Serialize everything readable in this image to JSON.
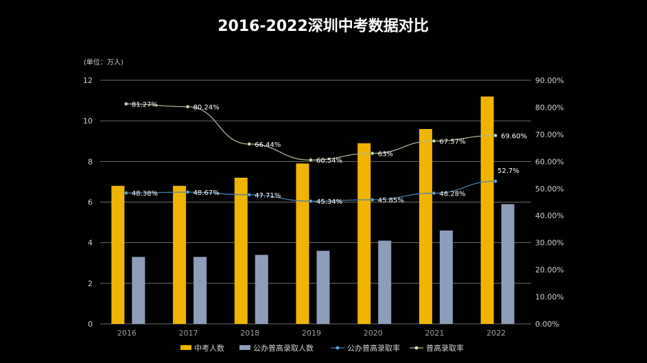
{
  "chart_data": {
    "type": "bar",
    "title": "2016-2022深圳中考数据对比",
    "unit_label": "(单位：万人)",
    "categories": [
      "2016",
      "2017",
      "2018",
      "2019",
      "2020",
      "2021",
      "2022"
    ],
    "y_left": {
      "min": 0,
      "max": 12,
      "ticks": [
        "0",
        "2",
        "4",
        "6",
        "8",
        "10",
        "12"
      ]
    },
    "y_right": {
      "min": 0,
      "max": 90,
      "ticks": [
        "0.00%",
        "10.00%",
        "20.00%",
        "30.00%",
        "40.00%",
        "50.00%",
        "60.00%",
        "70.00%",
        "80.00%",
        "90.00%"
      ]
    },
    "grid": true,
    "legend_position": "bottom",
    "bar_series": [
      {
        "name": "中考人数",
        "color": "#F0B400",
        "values": [
          6.8,
          6.8,
          7.2,
          7.9,
          8.9,
          9.6,
          11.2
        ]
      },
      {
        "name": "公办普高录取人数",
        "color": "#8E9DB9",
        "values": [
          3.3,
          3.3,
          3.4,
          3.6,
          4.1,
          4.6,
          5.9
        ]
      }
    ],
    "line_series": [
      {
        "name": "公办普高录取率",
        "color": "#4A7FB0",
        "values": [
          48.38,
          48.67,
          47.71,
          45.34,
          45.85,
          48.28,
          52.7
        ],
        "labels": [
          "48.38%",
          "48.67%",
          "47.71%",
          "45.34%",
          "45.85%",
          "48.28%",
          "52.7%"
        ]
      },
      {
        "name": "普高录取率",
        "color": "#A8B99A",
        "values": [
          81.27,
          80.24,
          66.44,
          60.54,
          63,
          67.57,
          69.6
        ],
        "labels": [
          "81.27%",
          "80.24%",
          "66.44%",
          "60.54%",
          "63%",
          "67.57%",
          "69.60%"
        ]
      }
    ]
  }
}
